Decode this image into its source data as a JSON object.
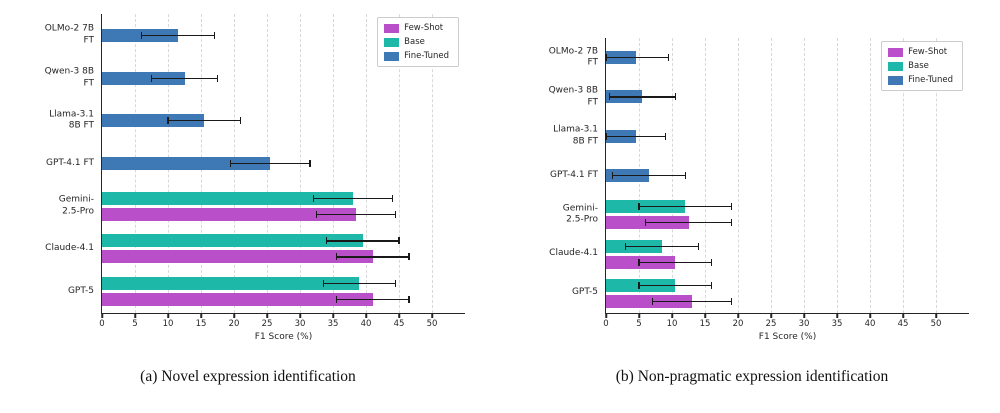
{
  "colors": {
    "few_shot": "#b94fc9",
    "base": "#1db8a8",
    "fine_tuned": "#3e79b5",
    "error_bar": "#1a1a1a"
  },
  "chart_data": [
    {
      "type": "bar",
      "orientation": "horizontal",
      "caption": "(a) Novel expression identification",
      "xlabel": "F1 Score (%)",
      "xlim": [
        0,
        55
      ],
      "xticks": [
        0,
        5,
        10,
        15,
        20,
        25,
        30,
        35,
        40,
        45,
        50
      ],
      "grid": "dashed-vertical",
      "legend_position": "top-right",
      "legend": [
        {
          "label": "Few-Shot",
          "color": "#b94fc9"
        },
        {
          "label": "Base",
          "color": "#1db8a8"
        },
        {
          "label": "Fine-Tuned",
          "color": "#3e79b5"
        }
      ],
      "rows": [
        {
          "label": [
            "OLMo-2 7B",
            "FT"
          ],
          "bars": [
            {
              "series": "Fine-Tuned",
              "value": 11.5,
              "err": 5.5
            }
          ]
        },
        {
          "label": [
            "Qwen-3 8B",
            "FT"
          ],
          "bars": [
            {
              "series": "Fine-Tuned",
              "value": 12.5,
              "err": 5.0
            }
          ]
        },
        {
          "label": [
            "Llama-3.1",
            "8B FT"
          ],
          "bars": [
            {
              "series": "Fine-Tuned",
              "value": 15.5,
              "err": 5.5
            }
          ]
        },
        {
          "label": [
            "GPT-4.1 FT"
          ],
          "bars": [
            {
              "series": "Fine-Tuned",
              "value": 25.5,
              "err": 6.0
            }
          ]
        },
        {
          "label": [
            "Gemini-",
            "2.5-Pro"
          ],
          "bars": [
            {
              "series": "Base",
              "value": 38.0,
              "err": 6.0
            },
            {
              "series": "Few-Shot",
              "value": 38.5,
              "err": 6.0
            }
          ]
        },
        {
          "label": [
            "Claude-4.1"
          ],
          "bars": [
            {
              "series": "Base",
              "value": 39.5,
              "err": 5.5
            },
            {
              "series": "Few-Shot",
              "value": 41.0,
              "err": 5.5
            }
          ]
        },
        {
          "label": [
            "GPT-5"
          ],
          "bars": [
            {
              "series": "Base",
              "value": 39.0,
              "err": 5.5
            },
            {
              "series": "Few-Shot",
              "value": 41.0,
              "err": 5.5
            }
          ]
        }
      ]
    },
    {
      "type": "bar",
      "orientation": "horizontal",
      "caption": "(b) Non-pragmatic expression identification",
      "xlabel": "F1 Score (%)",
      "xlim": [
        0,
        55
      ],
      "xticks": [
        0,
        5,
        10,
        15,
        20,
        25,
        30,
        35,
        40,
        45,
        50
      ],
      "grid": "dashed-vertical",
      "legend_position": "top-right",
      "legend": [
        {
          "label": "Few-Shot",
          "color": "#b94fc9"
        },
        {
          "label": "Base",
          "color": "#1db8a8"
        },
        {
          "label": "Fine-Tuned",
          "color": "#3e79b5"
        }
      ],
      "rows": [
        {
          "label": [
            "OLMo-2 7B",
            "FT"
          ],
          "bars": [
            {
              "series": "Fine-Tuned",
              "value": 4.5,
              "err": 5.0
            }
          ]
        },
        {
          "label": [
            "Qwen-3 8B",
            "FT"
          ],
          "bars": [
            {
              "series": "Fine-Tuned",
              "value": 5.5,
              "err": 5.0
            }
          ]
        },
        {
          "label": [
            "Llama-3.1",
            "8B FT"
          ],
          "bars": [
            {
              "series": "Fine-Tuned",
              "value": 4.5,
              "err": 4.5
            }
          ]
        },
        {
          "label": [
            "GPT-4.1 FT"
          ],
          "bars": [
            {
              "series": "Fine-Tuned",
              "value": 6.5,
              "err": 5.5
            }
          ]
        },
        {
          "label": [
            "Gemini-",
            "2.5-Pro"
          ],
          "bars": [
            {
              "series": "Base",
              "value": 12.0,
              "err": 7.0
            },
            {
              "series": "Few-Shot",
              "value": 12.5,
              "err": 6.5
            }
          ]
        },
        {
          "label": [
            "Claude-4.1"
          ],
          "bars": [
            {
              "series": "Base",
              "value": 8.5,
              "err": 5.5
            },
            {
              "series": "Few-Shot",
              "value": 10.5,
              "err": 5.5
            }
          ]
        },
        {
          "label": [
            "GPT-5"
          ],
          "bars": [
            {
              "series": "Base",
              "value": 10.5,
              "err": 5.5
            },
            {
              "series": "Few-Shot",
              "value": 13.0,
              "err": 6.0
            }
          ]
        }
      ]
    }
  ]
}
